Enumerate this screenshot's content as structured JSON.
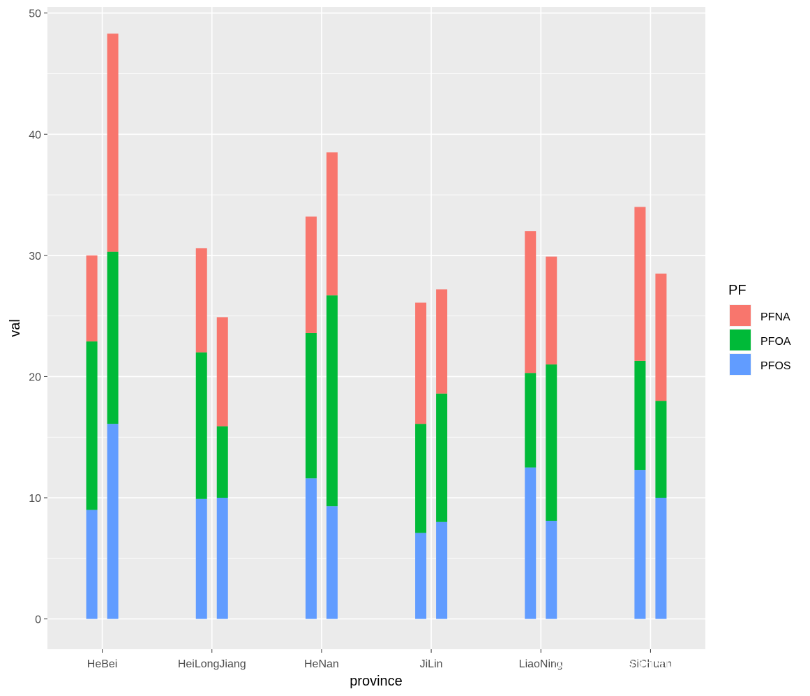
{
  "chart_data": {
    "type": "bar",
    "stacked": true,
    "dodged": true,
    "xlabel": "province",
    "ylabel": "val",
    "ylim": [
      -2.5,
      50.5
    ],
    "yticks": [
      0,
      10,
      20,
      30,
      40,
      50
    ],
    "grid": true,
    "categories": [
      "HeBei",
      "HeiLongJiang",
      "HeNan",
      "JiLin",
      "LiaoNing",
      "SiChuan"
    ],
    "bars_per_category": 2,
    "series": [
      {
        "name": "PFOS",
        "color": "#619CFF",
        "values": [
          [
            9.0,
            16.1
          ],
          [
            9.9,
            10.0
          ],
          [
            11.6,
            9.3
          ],
          [
            7.1,
            8.0
          ],
          [
            12.5,
            8.1
          ],
          [
            12.3,
            10.0
          ]
        ]
      },
      {
        "name": "PFOA",
        "color": "#00BA38",
        "values": [
          [
            13.9,
            14.2
          ],
          [
            12.1,
            5.9
          ],
          [
            12.0,
            17.4
          ],
          [
            9.0,
            10.6
          ],
          [
            7.8,
            12.9
          ],
          [
            9.0,
            8.0
          ]
        ]
      },
      {
        "name": "PFNA",
        "color": "#F8766D",
        "values": [
          [
            7.1,
            18.0
          ],
          [
            8.6,
            9.0
          ],
          [
            9.6,
            11.8
          ],
          [
            10.0,
            8.6
          ],
          [
            11.7,
            8.9
          ],
          [
            12.7,
            10.5
          ]
        ]
      }
    ],
    "legend": {
      "title": "PF",
      "position": "right",
      "items": [
        {
          "label": "PFNA",
          "color": "#F8766D"
        },
        {
          "label": "PFOA",
          "color": "#00BA38"
        },
        {
          "label": "PFOS",
          "color": "#619CFF"
        }
      ]
    }
  },
  "watermark": "知乎 @你的時間非常值錢"
}
